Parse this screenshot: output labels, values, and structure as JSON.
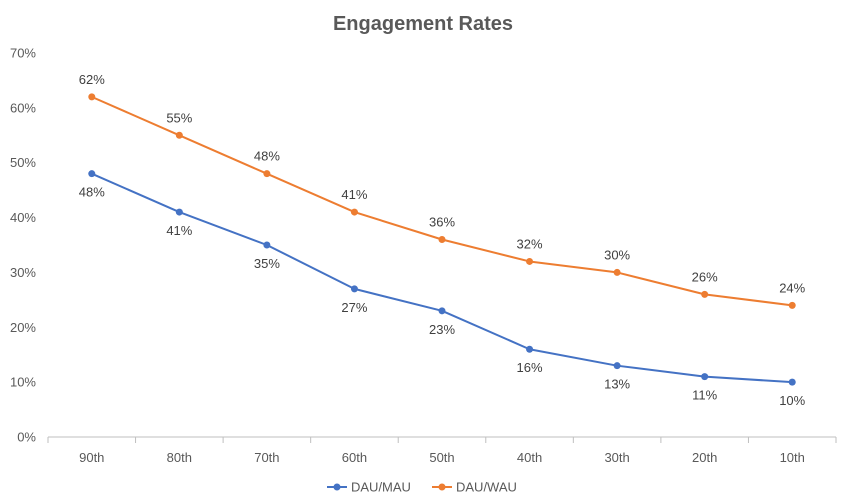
{
  "chart_data": {
    "type": "line",
    "title": "Engagement Rates",
    "xlabel": "",
    "ylabel": "",
    "categories": [
      "90th",
      "80th",
      "70th",
      "60th",
      "50th",
      "40th",
      "30th",
      "20th",
      "10th"
    ],
    "ylim": [
      0,
      70
    ],
    "yticks": [
      0,
      10,
      20,
      30,
      40,
      50,
      60,
      70
    ],
    "ytick_labels": [
      "0%",
      "10%",
      "20%",
      "30%",
      "40%",
      "50%",
      "60%",
      "70%"
    ],
    "grid": false,
    "legend_position": "bottom",
    "series": [
      {
        "name": "DAU/MAU",
        "color": "#4472C4",
        "values": [
          48,
          41,
          35,
          27,
          23,
          16,
          13,
          11,
          10
        ],
        "labels": [
          "48%",
          "41%",
          "35%",
          "27%",
          "23%",
          "16%",
          "13%",
          "11%",
          "10%"
        ],
        "label_position": "below"
      },
      {
        "name": "DAU/WAU",
        "color": "#ED7D31",
        "values": [
          62,
          55,
          48,
          41,
          36,
          32,
          30,
          26,
          24
        ],
        "labels": [
          "62%",
          "55%",
          "48%",
          "41%",
          "36%",
          "32%",
          "30%",
          "26%",
          "24%"
        ],
        "label_position": "above"
      }
    ]
  }
}
